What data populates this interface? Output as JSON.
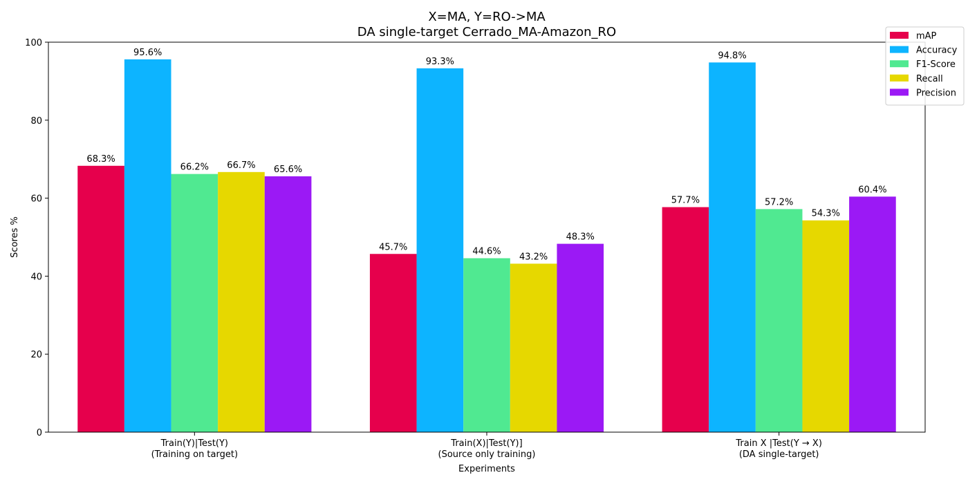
{
  "chart_data": {
    "type": "bar",
    "title": "X=MA, Y=RO->MA",
    "subtitle": "DA single-target Cerrado_MA-Amazon_RO",
    "xlabel": "Experiments",
    "ylabel": "Scores %",
    "ylim": [
      0,
      100
    ],
    "yticks": [
      "0",
      "20",
      "40",
      "60",
      "80",
      "100"
    ],
    "grid": false,
    "legend_position": "top-right",
    "categories": [
      [
        "Train(Y)|Test(Y)",
        "(Training on target)"
      ],
      [
        "Train(X)|Test(Y)]",
        "(Source only training)"
      ],
      [
        "Train X |Test(Y → X)",
        "(DA single-target)"
      ]
    ],
    "series": [
      {
        "name": "mAP",
        "color": "#e6004c",
        "values": [
          68.3,
          45.7,
          57.7
        ],
        "labels": [
          "68.3%",
          "45.7%",
          "57.7%"
        ]
      },
      {
        "name": "Accuracy",
        "color": "#0db4ff",
        "values": [
          95.6,
          93.3,
          94.8
        ],
        "labels": [
          "95.6%",
          "93.3%",
          "94.8%"
        ]
      },
      {
        "name": "F1-Score",
        "color": "#50e991",
        "values": [
          66.2,
          44.6,
          57.2
        ],
        "labels": [
          "66.2%",
          "44.6%",
          "57.2%"
        ]
      },
      {
        "name": "Recall",
        "color": "#e6d800",
        "values": [
          66.7,
          43.2,
          54.3
        ],
        "labels": [
          "66.7%",
          "43.2%",
          "54.3%"
        ]
      },
      {
        "name": "Precision",
        "color": "#9b19f5",
        "values": [
          65.6,
          48.3,
          60.4
        ],
        "labels": [
          "65.6%",
          "48.3%",
          "60.4%"
        ]
      }
    ]
  }
}
